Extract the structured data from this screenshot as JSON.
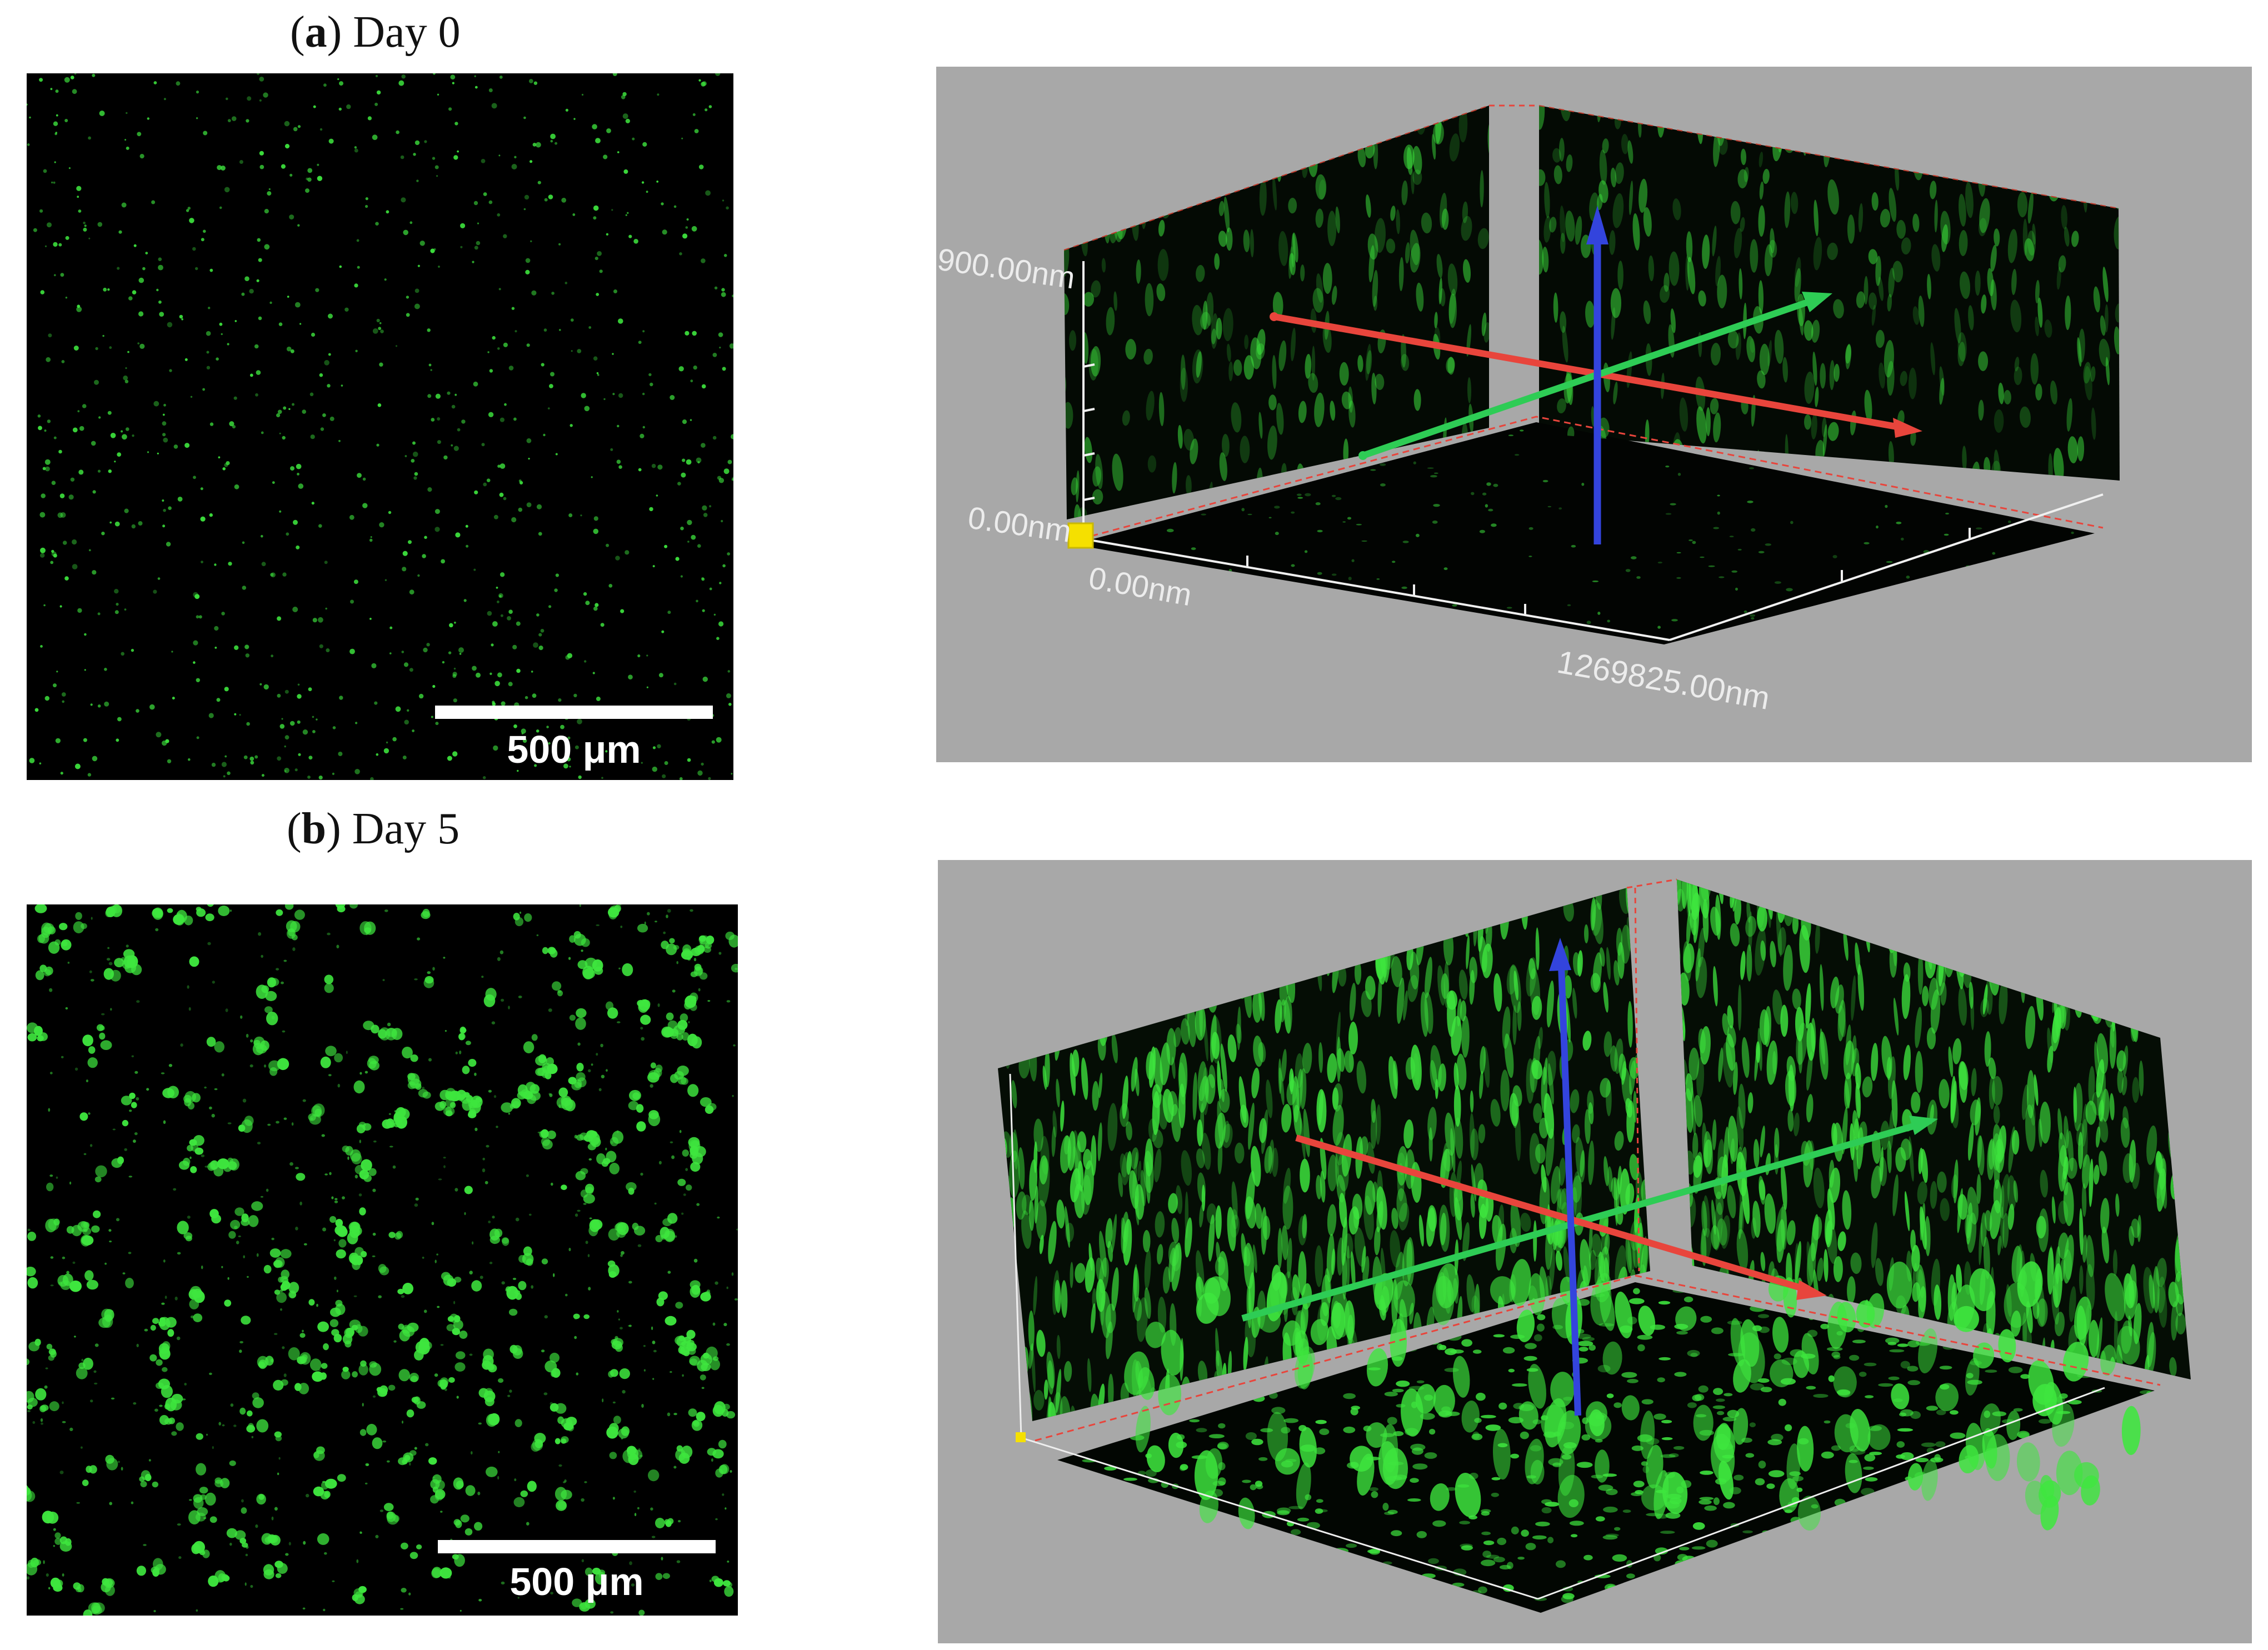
{
  "figure": {
    "panels": [
      {
        "letter": "a",
        "caption_rest": "Day 0",
        "scale_bar_label": "500 μm",
        "axis_labels": {
          "z_max": "900.00nm",
          "origin_z": "0.00nm",
          "origin_x": "0.00nm",
          "x_max": "1269825.00nm"
        }
      },
      {
        "letter": "b",
        "caption_rest": "Day 5",
        "scale_bar_label": "500 μm",
        "axis_labels": {}
      }
    ],
    "colors": {
      "fluorescence": "#3ee63e",
      "background_3d": "#a8a8a8",
      "axis_red": "#e8453c",
      "axis_green": "#2ecc55",
      "axis_blue": "#3344dd",
      "origin_marker": "#f5e000"
    }
  }
}
